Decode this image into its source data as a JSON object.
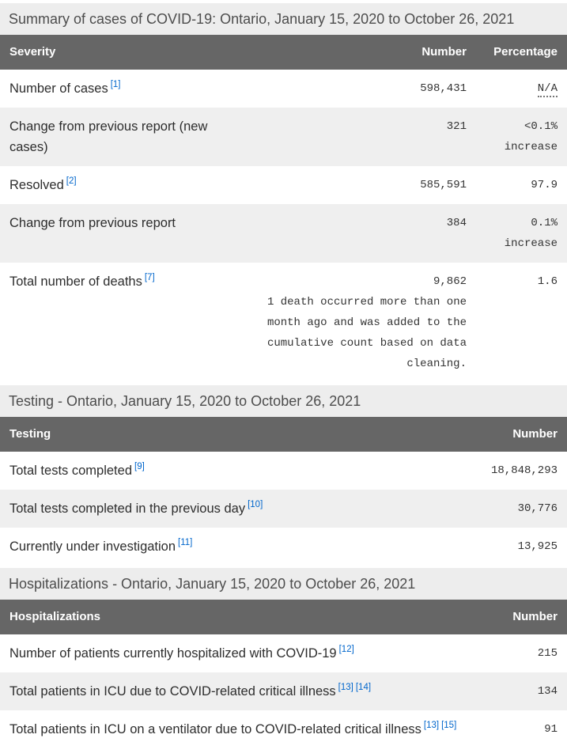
{
  "colors": {
    "caption_background": "#ededed",
    "caption_text": "#4d4d4d",
    "header_background": "#666666",
    "header_text": "#ffffff",
    "shaded_row_background": "#efefef",
    "body_text": "#2d2d2d",
    "numeric_text": "#333333",
    "footnote_link": "#0066cc"
  },
  "tables": [
    {
      "id": "summary",
      "caption": "Summary of cases of COVID-19: Ontario, January 15, 2020 to October 26, 2021",
      "columns": [
        "Severity",
        "Number",
        "Percentage"
      ],
      "rows": [
        {
          "label": "Number of cases",
          "refs": [
            "[1]"
          ],
          "number": "598,431",
          "percentage": "N/A",
          "percentage_abbr": true,
          "shaded": false
        },
        {
          "label": "Change from previous report (new cases)",
          "refs": [],
          "number": "321",
          "percentage": "<0.1% increase",
          "shaded": true
        },
        {
          "label": "Resolved",
          "refs": [
            "[2]"
          ],
          "number": "585,591",
          "percentage": "97.9",
          "shaded": false
        },
        {
          "label": "Change from previous report",
          "refs": [],
          "number": "384",
          "percentage": "0.1% increase",
          "shaded": true
        },
        {
          "label": "Total number of deaths",
          "refs": [
            "[7]"
          ],
          "number": "9,862",
          "number_note": "1 death occurred more than one month ago and was added to the cumulative count based on data cleaning.",
          "percentage": "1.6",
          "shaded": false
        }
      ]
    },
    {
      "id": "testing",
      "caption": "Testing - Ontario, January 15, 2020 to October 26, 2021",
      "columns": [
        "Testing",
        "Number"
      ],
      "rows": [
        {
          "label": "Total tests completed",
          "refs": [
            "[9]"
          ],
          "number": "18,848,293",
          "shaded": false
        },
        {
          "label": "Total tests completed in the previous day",
          "refs": [
            "[10]"
          ],
          "number": "30,776",
          "shaded": true
        },
        {
          "label": "Currently under investigation",
          "refs": [
            "[11]"
          ],
          "number": "13,925",
          "shaded": false
        }
      ]
    },
    {
      "id": "hospitalizations",
      "caption": "Hospitalizations - Ontario, January 15, 2020 to October 26, 2021",
      "columns": [
        "Hospitalizations",
        "Number"
      ],
      "rows": [
        {
          "label": "Number of patients currently hospitalized with COVID-19",
          "refs": [
            "[12]"
          ],
          "number": "215",
          "shaded": false
        },
        {
          "label": "Total patients in ICU due to COVID-related critical illness",
          "refs": [
            "[13]",
            "[14]"
          ],
          "number": "134",
          "shaded": true
        },
        {
          "label": "Total patients in ICU on a ventilator due to COVID-related critical illness",
          "refs": [
            "[13]",
            "[15]"
          ],
          "number": "91",
          "shaded": false
        }
      ]
    }
  ]
}
